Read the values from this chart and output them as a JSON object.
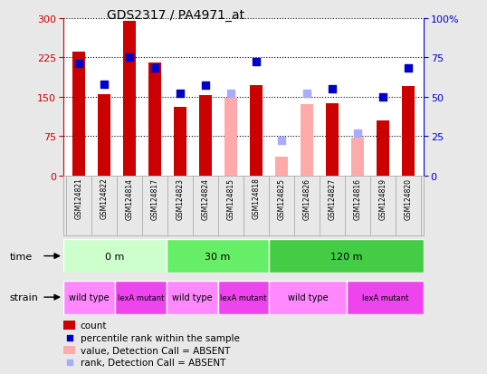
{
  "title": "GDS2317 / PA4971_at",
  "samples": [
    "GSM124821",
    "GSM124822",
    "GSM124814",
    "GSM124817",
    "GSM124823",
    "GSM124824",
    "GSM124815",
    "GSM124818",
    "GSM124825",
    "GSM124826",
    "GSM124827",
    "GSM124816",
    "GSM124819",
    "GSM124820"
  ],
  "count_values": [
    235,
    155,
    295,
    215,
    130,
    152,
    null,
    172,
    null,
    null,
    138,
    null,
    105,
    170
  ],
  "count_absent": [
    null,
    null,
    null,
    null,
    null,
    null,
    148,
    null,
    35,
    135,
    null,
    72,
    null,
    null
  ],
  "rank_values": [
    71,
    58,
    75,
    68,
    52,
    57,
    null,
    72,
    null,
    null,
    55,
    null,
    50,
    68
  ],
  "rank_absent": [
    null,
    null,
    null,
    null,
    null,
    null,
    52,
    null,
    22,
    52,
    null,
    27,
    null,
    null
  ],
  "ylim_left": [
    0,
    300
  ],
  "ylim_right": [
    0,
    100
  ],
  "yticks_left": [
    0,
    75,
    150,
    225,
    300
  ],
  "yticks_right": [
    0,
    25,
    50,
    75,
    100
  ],
  "time_groups": [
    {
      "label": "0 m",
      "start": 0,
      "end": 4,
      "color": "#ccffcc"
    },
    {
      "label": "30 m",
      "start": 4,
      "end": 8,
      "color": "#66ee66"
    },
    {
      "label": "120 m",
      "start": 8,
      "end": 14,
      "color": "#44cc44"
    }
  ],
  "strain_groups": [
    {
      "label": "wild type",
      "start": 0,
      "end": 2,
      "color": "#ff88ff"
    },
    {
      "label": "lexA mutant",
      "start": 2,
      "end": 4,
      "color": "#ee44ee"
    },
    {
      "label": "wild type",
      "start": 4,
      "end": 6,
      "color": "#ff88ff"
    },
    {
      "label": "lexA mutant",
      "start": 6,
      "end": 8,
      "color": "#ee44ee"
    },
    {
      "label": "wild type",
      "start": 8,
      "end": 11,
      "color": "#ff88ff"
    },
    {
      "label": "lexA mutant",
      "start": 11,
      "end": 14,
      "color": "#ee44ee"
    }
  ],
  "bar_width": 0.5,
  "count_color": "#cc0000",
  "count_absent_color": "#ffaaaa",
  "rank_color": "#0000cc",
  "rank_absent_color": "#aaaaff",
  "bg_color": "#e8e8e8",
  "plot_bg": "#ffffff",
  "grid_color": "#000000",
  "legend_items": [
    {
      "label": "count",
      "color": "#cc0000",
      "type": "bar"
    },
    {
      "label": "percentile rank within the sample",
      "color": "#0000cc",
      "type": "square"
    },
    {
      "label": "value, Detection Call = ABSENT",
      "color": "#ffaaaa",
      "type": "bar"
    },
    {
      "label": "rank, Detection Call = ABSENT",
      "color": "#aaaaff",
      "type": "square"
    }
  ]
}
